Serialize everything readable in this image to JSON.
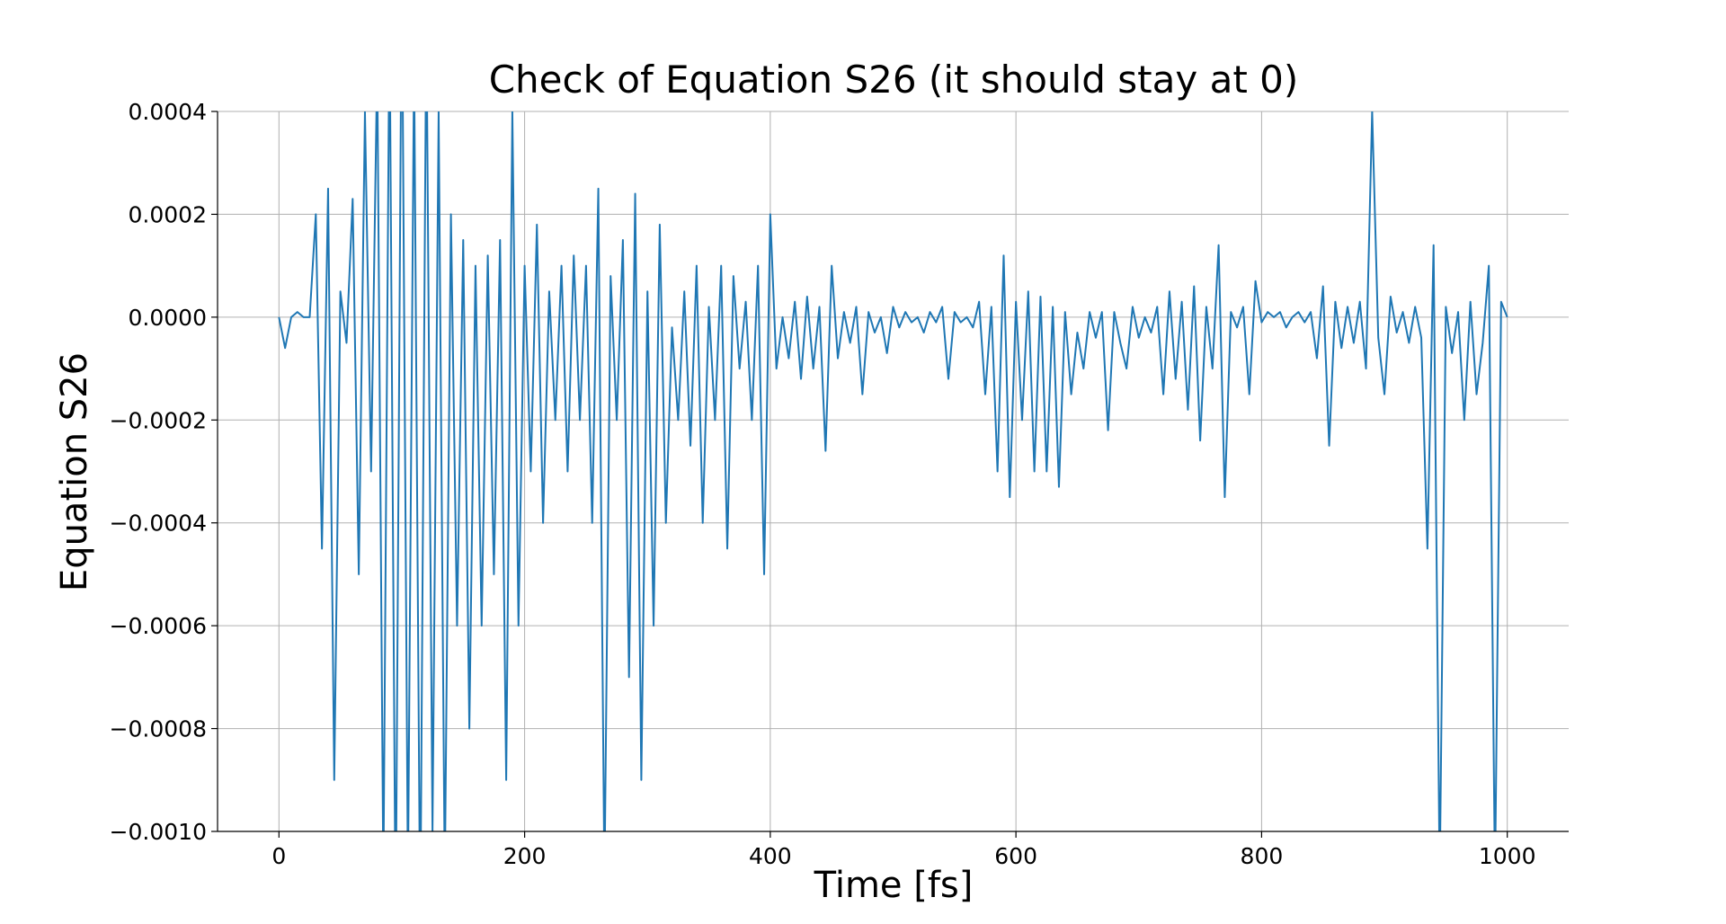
{
  "chart_data": {
    "type": "line",
    "title": "Check of Equation S26 (it should stay at 0)",
    "xlabel": "Time [fs]",
    "ylabel": "Equation S26",
    "color": "#1f77b4",
    "grid": true,
    "xlim": [
      -50,
      1050
    ],
    "ylim": [
      -0.001,
      0.0004
    ],
    "xticks": [
      0,
      200,
      400,
      600,
      800,
      1000
    ],
    "yticks": [
      {
        "value": -0.001,
        "label": "−0.0010"
      },
      {
        "value": -0.0008,
        "label": "−0.0008"
      },
      {
        "value": -0.0006,
        "label": "−0.0006"
      },
      {
        "value": -0.0004,
        "label": "−0.0004"
      },
      {
        "value": -0.0002,
        "label": "−0.0002"
      },
      {
        "value": 0,
        "label": "0.0000"
      },
      {
        "value": 0.0002,
        "label": "0.0002"
      },
      {
        "value": 0.0004,
        "label": "0.0004"
      }
    ],
    "x": [
      0,
      5,
      10,
      15,
      20,
      25,
      30,
      35,
      40,
      45,
      50,
      55,
      60,
      65,
      70,
      75,
      80,
      85,
      90,
      95,
      100,
      105,
      110,
      115,
      120,
      125,
      130,
      135,
      140,
      145,
      150,
      155,
      160,
      165,
      170,
      175,
      180,
      185,
      190,
      195,
      200,
      205,
      210,
      215,
      220,
      225,
      230,
      235,
      240,
      245,
      250,
      255,
      260,
      265,
      270,
      275,
      280,
      285,
      290,
      295,
      300,
      305,
      310,
      315,
      320,
      325,
      330,
      335,
      340,
      345,
      350,
      355,
      360,
      365,
      370,
      375,
      380,
      385,
      390,
      395,
      400,
      405,
      410,
      415,
      420,
      425,
      430,
      435,
      440,
      445,
      450,
      455,
      460,
      465,
      470,
      475,
      480,
      485,
      490,
      495,
      500,
      505,
      510,
      515,
      520,
      525,
      530,
      535,
      540,
      545,
      550,
      555,
      560,
      565,
      570,
      575,
      580,
      585,
      590,
      595,
      600,
      605,
      610,
      615,
      620,
      625,
      630,
      635,
      640,
      645,
      650,
      655,
      660,
      665,
      670,
      675,
      680,
      685,
      690,
      695,
      700,
      705,
      710,
      715,
      720,
      725,
      730,
      735,
      740,
      745,
      750,
      755,
      760,
      765,
      770,
      775,
      780,
      785,
      790,
      795,
      800,
      805,
      810,
      815,
      820,
      825,
      830,
      835,
      840,
      845,
      850,
      855,
      860,
      865,
      870,
      875,
      880,
      885,
      890,
      895,
      900,
      905,
      910,
      915,
      920,
      925,
      930,
      935,
      940,
      945,
      950,
      955,
      960,
      965,
      970,
      975,
      980,
      985,
      990,
      995,
      1000
    ],
    "values": [
      0,
      -6e-05,
      0,
      1e-05,
      0,
      0,
      0.0002,
      -0.00045,
      0.00025,
      -0.0009,
      5e-05,
      -5e-05,
      0.00023,
      -0.0005,
      0.0004,
      -0.0003,
      0.0005,
      -0.0011,
      0.0006,
      -0.0012,
      0.0007,
      -0.0011,
      0.0005,
      -0.0012,
      0.0006,
      -0.001,
      0.0004,
      -0.0011,
      0.0002,
      -0.0006,
      0.00015,
      -0.0008,
      0.0001,
      -0.0006,
      0.00012,
      -0.0005,
      0.00015,
      -0.0009,
      0.0004,
      -0.0006,
      0.0001,
      -0.0003,
      0.00018,
      -0.0004,
      5e-05,
      -0.0002,
      0.0001,
      -0.0003,
      0.00012,
      -0.0002,
      0.0001,
      -0.0004,
      0.00025,
      -0.0011,
      8e-05,
      -0.0002,
      0.00015,
      -0.0007,
      0.00024,
      -0.0009,
      5e-05,
      -0.0006,
      0.00018,
      -0.0004,
      -2e-05,
      -0.0002,
      5e-05,
      -0.00025,
      0.0001,
      -0.0004,
      2e-05,
      -0.0002,
      0.0001,
      -0.00045,
      8e-05,
      -0.0001,
      3e-05,
      -0.0002,
      0.0001,
      -0.0005,
      0.0002,
      -0.0001,
      0,
      -8e-05,
      3e-05,
      -0.00012,
      4e-05,
      -0.0001,
      2e-05,
      -0.00026,
      0.0001,
      -8e-05,
      1e-05,
      -5e-05,
      2e-05,
      -0.00015,
      1e-05,
      -3e-05,
      0,
      -7e-05,
      2e-05,
      -2e-05,
      1e-05,
      -1e-05,
      0,
      -3e-05,
      1e-05,
      -1e-05,
      2e-05,
      -0.00012,
      1e-05,
      -1e-05,
      0,
      -2e-05,
      3e-05,
      -0.00015,
      2e-05,
      -0.0003,
      0.00012,
      -0.00035,
      3e-05,
      -0.0002,
      5e-05,
      -0.0003,
      4e-05,
      -0.0003,
      2e-05,
      -0.00033,
      1e-05,
      -0.00015,
      -3e-05,
      -0.0001,
      1e-05,
      -4e-05,
      1e-05,
      -0.00022,
      1e-05,
      -5e-05,
      -0.0001,
      2e-05,
      -4e-05,
      0,
      -3e-05,
      2e-05,
      -0.00015,
      5e-05,
      -0.00012,
      3e-05,
      -0.00018,
      6e-05,
      -0.00024,
      2e-05,
      -0.0001,
      0.00014,
      -0.00035,
      1e-05,
      -2e-05,
      2e-05,
      -0.00015,
      7e-05,
      -1e-05,
      1e-05,
      0,
      1e-05,
      -2e-05,
      0,
      1e-05,
      -1e-05,
      1e-05,
      -8e-05,
      6e-05,
      -0.00025,
      3e-05,
      -6e-05,
      2e-05,
      -5e-05,
      3e-05,
      -0.0001,
      0.0004,
      -4e-05,
      -0.00015,
      4e-05,
      -3e-05,
      1e-05,
      -5e-05,
      2e-05,
      -4e-05,
      -0.00045,
      0.00014,
      -0.0011,
      2e-05,
      -7e-05,
      1e-05,
      -0.0002,
      3e-05,
      -0.00015,
      -5e-05,
      0.0001,
      -0.0011,
      3e-05,
      0
    ]
  }
}
